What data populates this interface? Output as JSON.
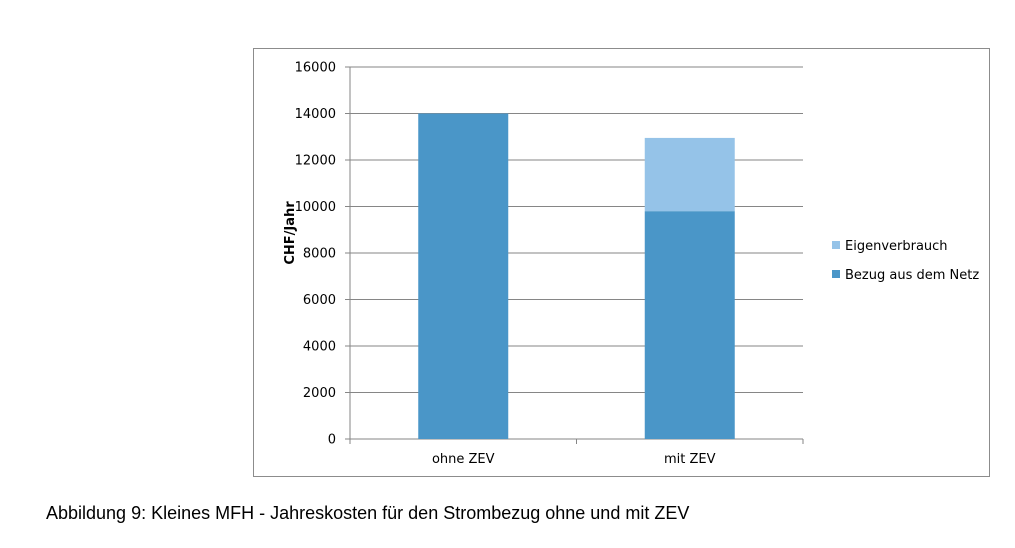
{
  "chart_data": {
    "type": "bar",
    "stacked": true,
    "categories": [
      "ohne ZEV",
      "mit ZEV"
    ],
    "series": [
      {
        "name": "Bezug aus dem Netz",
        "values": [
          14000,
          9800
        ],
        "color": "#4a96c8"
      },
      {
        "name": "Eigenverbrauch",
        "values": [
          0,
          3150
        ],
        "color": "#95c3e8"
      }
    ],
    "ylabel": "CHF/Jahr",
    "xlabel": "",
    "ylim": [
      0,
      16000
    ],
    "yticks": [
      0,
      2000,
      4000,
      6000,
      8000,
      10000,
      12000,
      14000,
      16000
    ],
    "grid": true,
    "legend_position": "right",
    "legend_order": [
      "Eigenverbrauch",
      "Bezug aus dem Netz"
    ]
  },
  "caption": "Abbildung 9: Kleines MFH - Jahreskosten für den Strombezug ohne und mit ZEV"
}
